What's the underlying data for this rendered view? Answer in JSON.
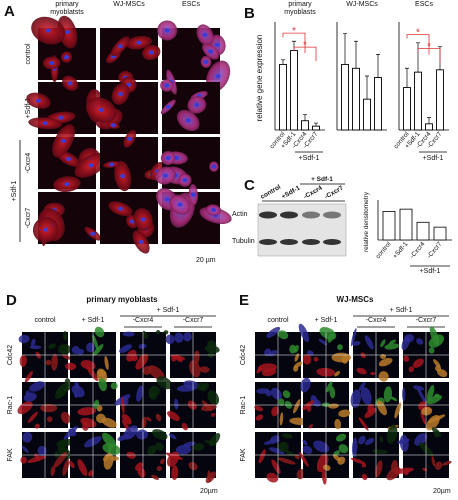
{
  "panel_a": {
    "label": "A",
    "columns": [
      "primary myoblatsts",
      "WJ-MSCs",
      "ESCs"
    ],
    "rows": [
      "control",
      "+Sdf-1",
      "-Cxcr4",
      "-Cxcr7"
    ],
    "group": "+Sdf-1",
    "scale": "20 µm"
  },
  "panel_b": {
    "label": "B",
    "y_label": "relative gene expression",
    "ylim": [
      0,
      140
    ],
    "charts": [
      {
        "title": "primary myoblasts",
        "categories": [
          "control",
          "+Sdf-1",
          "-Cxcr4",
          "-Cxcr7"
        ],
        "group": "+Sdf-1",
        "values": [
          85,
          103,
          12,
          5
        ],
        "errors": [
          6,
          12,
          8,
          4
        ],
        "stars": [
          "*",
          "*"
        ]
      },
      {
        "title": "WJ-MSCs",
        "values": [
          85,
          80,
          40,
          68
        ],
        "errors": [
          40,
          35,
          30,
          30
        ]
      },
      {
        "title": "ESCs",
        "categories": [
          "control",
          "+Sdf-1",
          "-Cxcr4",
          "-Cxcr7"
        ],
        "group": "+Sdf-1",
        "values": [
          55,
          75,
          8,
          78
        ],
        "errors": [
          25,
          38,
          8,
          30
        ],
        "stars": [
          "*",
          "*"
        ]
      }
    ]
  },
  "panel_c": {
    "label": "C",
    "lanes": [
      "control",
      "+Sdf-1",
      "-Cxcr4",
      "-Cxcr7"
    ],
    "lane_group": "+ Sdf-1",
    "bands": [
      "Actin",
      "Tubulin"
    ],
    "y_label": "relative densitometry",
    "categories": [
      "control",
      "+Sdf-1",
      "-Cxcr4",
      "-Cxcr7"
    ],
    "group": "+Sdf-1",
    "values": [
      1.0,
      1.08,
      0.62,
      0.45
    ],
    "ylim": [
      0,
      1.4
    ]
  },
  "panel_d": {
    "label": "D",
    "title": "primary myoblasts",
    "group": "+ Sdf-1",
    "columns": [
      "control",
      "+ Sdf-1",
      "-Cxcr4",
      "-Cxcr7"
    ],
    "rows": [
      "Cdc42",
      "Rac-1",
      "FAK"
    ],
    "scale": "20µm"
  },
  "panel_e": {
    "label": "E",
    "title": "WJ-MSCs",
    "group": "+ Sdf-1",
    "columns": [
      "control",
      "+ Sdf-1",
      "-Cxcr4",
      "-Cxcr7"
    ],
    "rows": [
      "Cdc42",
      "Rac-1",
      "FAK"
    ],
    "scale": "20µm"
  }
}
